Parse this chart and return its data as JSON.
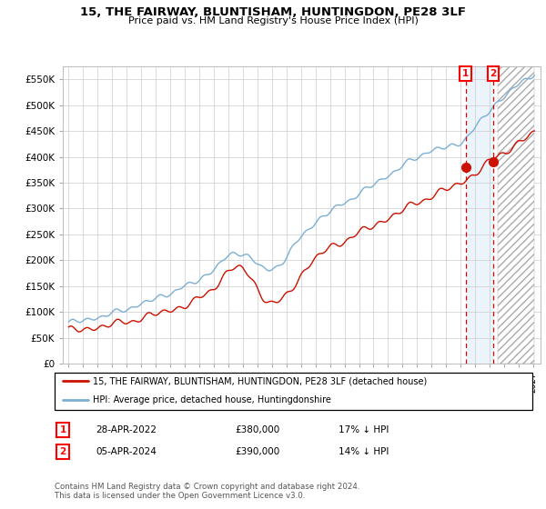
{
  "title": "15, THE FAIRWAY, BLUNTISHAM, HUNTINGDON, PE28 3LF",
  "subtitle": "Price paid vs. HM Land Registry's House Price Index (HPI)",
  "ylim": [
    0,
    575000
  ],
  "yticks": [
    0,
    50000,
    100000,
    150000,
    200000,
    250000,
    300000,
    350000,
    400000,
    450000,
    500000,
    550000
  ],
  "ytick_labels": [
    "£0",
    "£50K",
    "£100K",
    "£150K",
    "£200K",
    "£250K",
    "£300K",
    "£350K",
    "£400K",
    "£450K",
    "£500K",
    "£550K"
  ],
  "hpi_color": "#7bafd4",
  "price_color": "#cc1100",
  "vline_color": "#dd0000",
  "sale1_year": 2022.33,
  "sale1_val": 380000,
  "sale2_year": 2024.25,
  "sale2_val": 390000,
  "hpi_at_sale1": 457000,
  "hpi_at_sale2": 455000,
  "sale1_date": "28-APR-2022",
  "sale1_price": 380000,
  "sale1_hpi_pct": "17% ↓ HPI",
  "sale2_date": "05-APR-2024",
  "sale2_price": 390000,
  "sale2_hpi_pct": "14% ↓ HPI",
  "legend_label1": "15, THE FAIRWAY, BLUNTISHAM, HUNTINGDON, PE28 3LF (detached house)",
  "legend_label2": "HPI: Average price, detached house, Huntingdonshire",
  "footnote": "Contains HM Land Registry data © Crown copyright and database right 2024.\nThis data is licensed under the Open Government Licence v3.0.",
  "grid_color": "#cccccc",
  "xlim_left": 1994.6,
  "xlim_right": 2027.5,
  "hatch_start": 2024.5,
  "shade_start": 2022.33,
  "shade_end": 2024.25
}
